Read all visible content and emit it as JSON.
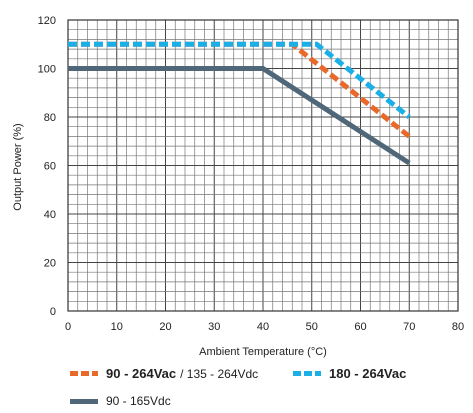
{
  "chart_data": {
    "type": "line",
    "xlabel": "Ambient Temperature (°C)",
    "ylabel": "Output Power (%)",
    "xlim": [
      0,
      80
    ],
    "ylim": [
      0,
      120
    ],
    "x_ticks": [
      0,
      10,
      20,
      30,
      40,
      50,
      60,
      70,
      80
    ],
    "y_ticks": [
      0,
      20,
      40,
      60,
      80,
      100,
      120
    ],
    "grid": true,
    "series": [
      {
        "name_bold": "90 - 264Vac",
        "name_rest": "/ 135 - 264Vdc",
        "color": "#E8692A",
        "style": "dashed",
        "points": [
          [
            0,
            110
          ],
          [
            46,
            110
          ],
          [
            70,
            72
          ]
        ]
      },
      {
        "name_bold": "180 - 264Vac",
        "name_rest": "",
        "color": "#1AAFE6",
        "style": "dashed",
        "points": [
          [
            0,
            110
          ],
          [
            51,
            110
          ],
          [
            70,
            80
          ]
        ]
      },
      {
        "name_bold": "",
        "name_rest": "90 - 165Vdc",
        "color": "#4F6778",
        "style": "solid",
        "points": [
          [
            0,
            100
          ],
          [
            40,
            100
          ],
          [
            70,
            61
          ]
        ]
      }
    ]
  }
}
